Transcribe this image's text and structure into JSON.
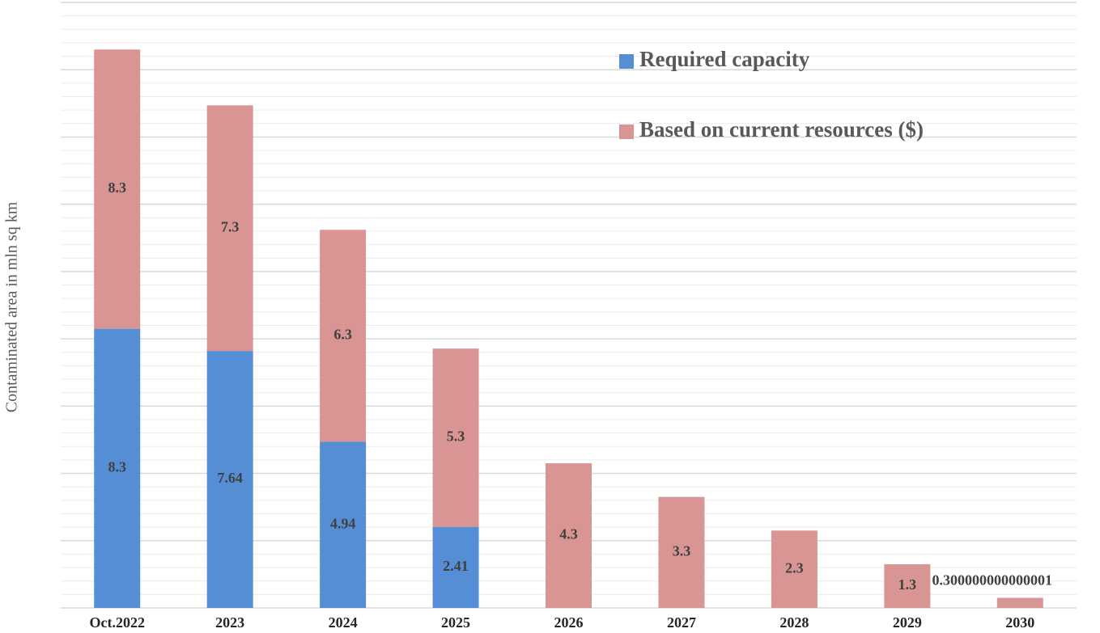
{
  "chart_data": {
    "type": "stacked_bar",
    "ylabel": "Contaminated area in mln sq km",
    "categories": [
      "Oct.2022",
      "2023",
      "2024",
      "2025",
      "2026",
      "2027",
      "2028",
      "2029",
      "2030"
    ],
    "series": [
      {
        "name": "Required capacity",
        "color": "#558ed5",
        "values": [
          8.3,
          7.64,
          4.94,
          2.41,
          null,
          null,
          null,
          null,
          null
        ]
      },
      {
        "name": "Based on current resources ($)",
        "color": "#d99594",
        "values": [
          8.3,
          7.3,
          6.3,
          5.3,
          4.3,
          3.3,
          2.3,
          1.3,
          0.300000000000001
        ]
      }
    ],
    "ylim": [
      0,
      18
    ],
    "yticks": [
      0,
      2,
      4,
      6,
      8,
      10,
      12,
      14,
      16,
      18
    ],
    "minor_yticks": [
      0.4,
      0.8,
      1.2,
      1.6,
      2.4,
      2.8,
      3.2,
      3.6,
      4.4,
      4.8,
      5.2,
      5.6,
      6.4,
      6.8,
      7.2,
      7.6,
      8.4,
      8.8,
      9.2,
      9.6,
      10.4,
      10.8,
      11.2,
      11.6,
      12.4,
      12.8,
      13.2,
      13.6,
      14.4,
      14.8,
      15.2,
      15.6,
      16.4,
      16.8,
      17.2,
      17.6
    ],
    "grid": true,
    "legend": "upper right"
  }
}
